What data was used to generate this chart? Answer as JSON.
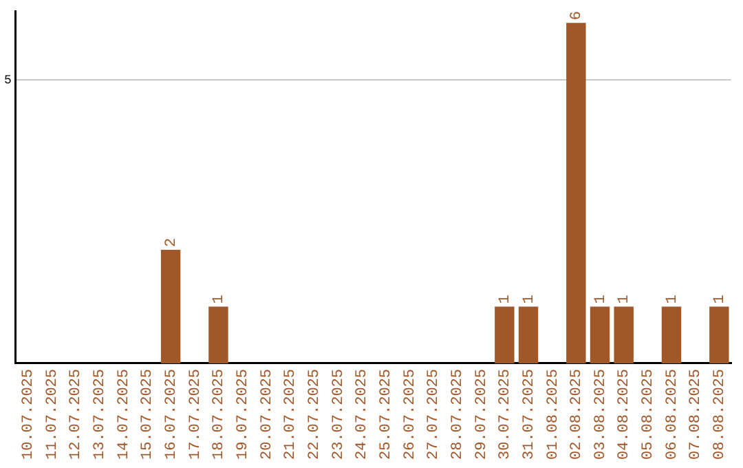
{
  "chart_data": {
    "type": "bar",
    "categories": [
      "10.07.2025",
      "11.07.2025",
      "12.07.2025",
      "13.07.2025",
      "14.07.2025",
      "15.07.2025",
      "16.07.2025",
      "17.07.2025",
      "18.07.2025",
      "19.07.2025",
      "20.07.2025",
      "21.07.2025",
      "22.07.2025",
      "23.07.2025",
      "24.07.2025",
      "25.07.2025",
      "26.07.2025",
      "27.07.2025",
      "28.07.2025",
      "29.07.2025",
      "30.07.2025",
      "31.07.2025",
      "01.08.2025",
      "02.08.2025",
      "03.08.2025",
      "04.08.2025",
      "05.08.2025",
      "06.08.2025",
      "07.08.2025",
      "08.08.2025"
    ],
    "values": [
      0,
      0,
      0,
      0,
      0,
      0,
      2,
      0,
      1,
      0,
      0,
      0,
      0,
      0,
      0,
      0,
      0,
      0,
      0,
      0,
      1,
      1,
      0,
      6,
      1,
      1,
      0,
      1,
      0,
      1
    ],
    "value_labels": [
      null,
      null,
      null,
      null,
      null,
      null,
      "2",
      null,
      "1",
      null,
      null,
      null,
      null,
      null,
      null,
      null,
      null,
      null,
      null,
      null,
      "1",
      "1",
      null,
      "6",
      "1",
      "1",
      null,
      "1",
      null,
      "1"
    ],
    "color": "#a0572a",
    "ylim": [
      0,
      6.2
    ],
    "yticks": [
      5
    ],
    "grid": "y",
    "legend": false
  }
}
